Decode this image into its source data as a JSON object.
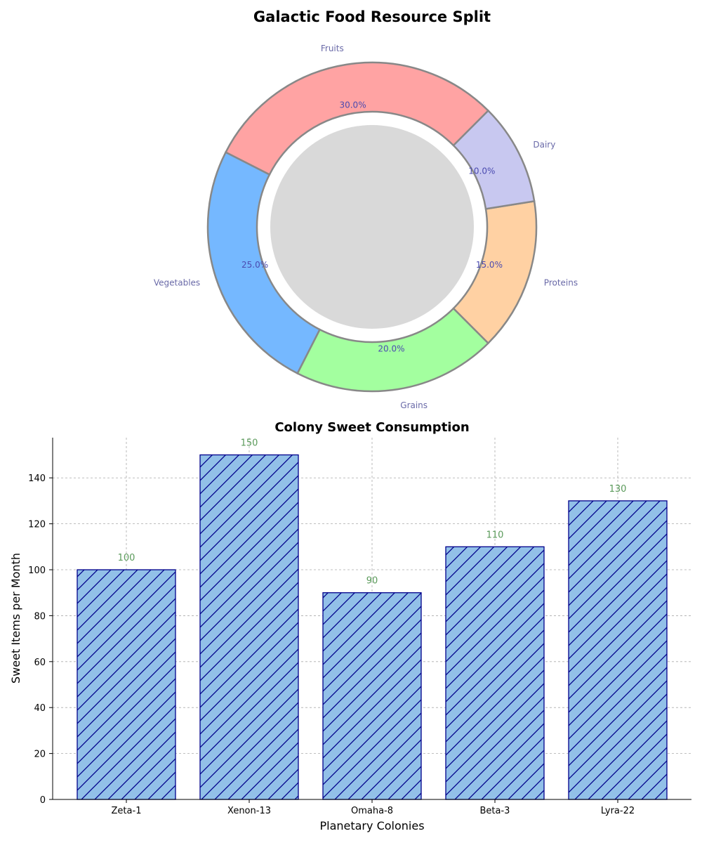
{
  "chart_data": [
    {
      "type": "pie",
      "donut": true,
      "title": "Galactic Food Resource Split",
      "categories": [
        "Fruits",
        "Vegetables",
        "Grains",
        "Proteins",
        "Dairy"
      ],
      "values": [
        30,
        25,
        20,
        15,
        10
      ],
      "percent_labels": [
        "30.0%",
        "25.0%",
        "20.0%",
        "15.0%",
        "10.0%"
      ],
      "colors": [
        "#ffa3a3",
        "#75b8ff",
        "#a3ff9f",
        "#ffd1a3",
        "#c8c8f0"
      ],
      "center_color": "#d9d9d9",
      "edge_color": "#888888",
      "start_angle_deg": 45,
      "direction": "counterclockwise"
    },
    {
      "type": "bar",
      "title": "Colony Sweet Consumption",
      "categories": [
        "Zeta-1",
        "Xenon-13",
        "Omaha-8",
        "Beta-3",
        "Lyra-22"
      ],
      "values": [
        100,
        150,
        90,
        110,
        130
      ],
      "value_labels": [
        "100",
        "150",
        "90",
        "110",
        "130"
      ],
      "xlabel": "Planetary Colonies",
      "ylabel": "Sweet Items per Month",
      "ylim": [
        0,
        157.5
      ],
      "yticks": [
        0,
        20,
        40,
        60,
        80,
        100,
        120,
        140
      ],
      "ytick_labels": [
        "0",
        "20",
        "40",
        "60",
        "80",
        "100",
        "120",
        "140"
      ],
      "bar_color": "#92c0e8",
      "edge_color": "#00008b",
      "hatch": "diagonal",
      "grid": true
    }
  ]
}
